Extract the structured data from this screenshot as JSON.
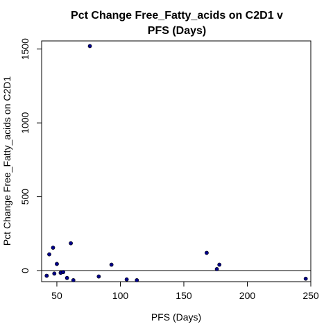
{
  "chart_data": {
    "type": "scatter",
    "title_lines": [
      "Pct Change Free_Fatty_acids on C2D1 v",
      "PFS (Days)"
    ],
    "xlabel": "PFS (Days)",
    "ylabel": "Pct Change Free_Fatty_acids on C2D1",
    "xlim": [
      38,
      250
    ],
    "ylim": [
      -75,
      1555
    ],
    "x_ticks": [
      50,
      100,
      150,
      200,
      250
    ],
    "y_ticks": [
      0,
      500,
      1000,
      1500
    ],
    "reference_line_y": 0,
    "point_color": "#00008B",
    "points": [
      {
        "x": 42,
        "y": -35
      },
      {
        "x": 44,
        "y": 110
      },
      {
        "x": 47,
        "y": 155
      },
      {
        "x": 48,
        "y": -20
      },
      {
        "x": 50,
        "y": 45
      },
      {
        "x": 53,
        "y": -15
      },
      {
        "x": 55,
        "y": -10
      },
      {
        "x": 58,
        "y": -50
      },
      {
        "x": 61,
        "y": 185
      },
      {
        "x": 63,
        "y": -65
      },
      {
        "x": 76,
        "y": 1520
      },
      {
        "x": 83,
        "y": -40
      },
      {
        "x": 93,
        "y": 40
      },
      {
        "x": 105,
        "y": -60
      },
      {
        "x": 113,
        "y": -65
      },
      {
        "x": 168,
        "y": 120
      },
      {
        "x": 176,
        "y": 10
      },
      {
        "x": 178,
        "y": 40
      },
      {
        "x": 246,
        "y": -55
      }
    ]
  }
}
